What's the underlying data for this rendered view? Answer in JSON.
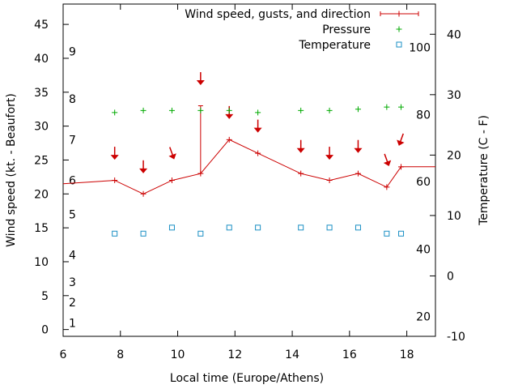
{
  "chart_data": {
    "type": "line",
    "xlabel": "Local time (Europe/Athens)",
    "ylabel_left": "Wind speed (kt. - Beaufort)",
    "ylabel_right": "Temperature (C - F)",
    "xlim": [
      6,
      19
    ],
    "ylim_left": [
      -1,
      48
    ],
    "ylim_right": [
      -10,
      45
    ],
    "x_ticks": [
      6,
      8,
      10,
      12,
      14,
      16,
      18
    ],
    "y_ticks_left": [
      0,
      5,
      10,
      15,
      20,
      25,
      30,
      35,
      40,
      45
    ],
    "y_ticks_right": [
      -10,
      0,
      10,
      20,
      30,
      40
    ],
    "beaufort_labels": [
      {
        "label": "1",
        "y": 1
      },
      {
        "label": "2",
        "y": 4
      },
      {
        "label": "3",
        "y": 7
      },
      {
        "label": "4",
        "y": 11
      },
      {
        "label": "5",
        "y": 17
      },
      {
        "label": "6",
        "y": 22
      },
      {
        "label": "7",
        "y": 28
      },
      {
        "label": "8",
        "y": 34
      },
      {
        "label": "9",
        "y": 41
      }
    ],
    "fahrenheit_labels": [
      {
        "label": "20",
        "t": -6.7
      },
      {
        "label": "40",
        "t": 4.4
      },
      {
        "label": "60",
        "t": 15.6
      },
      {
        "label": "80",
        "t": 26.7
      },
      {
        "label": "100",
        "t": 37.8
      }
    ],
    "legend": {
      "wind": "Wind speed, gusts, and direction",
      "pressure": "Pressure",
      "temperature": "Temperature"
    },
    "legend_position": "top-right",
    "wind_speed": {
      "x": [
        6.0,
        7.8,
        8.8,
        9.8,
        10.8,
        11.8,
        12.8,
        14.3,
        15.3,
        16.3,
        17.3,
        17.8,
        19.0
      ],
      "y": [
        21.5,
        22,
        20,
        22,
        23,
        28,
        26,
        23,
        22,
        23,
        21,
        24,
        24
      ]
    },
    "gusts": [
      {
        "x": 10.8,
        "low": 23,
        "high": 33
      }
    ],
    "wind_direction_arrows": [
      {
        "x": 7.8,
        "y": 26,
        "angle": 0
      },
      {
        "x": 8.8,
        "y": 24,
        "angle": 0
      },
      {
        "x": 9.8,
        "y": 26,
        "angle": -20
      },
      {
        "x": 10.8,
        "y": 37,
        "angle": 0
      },
      {
        "x": 11.8,
        "y": 32,
        "angle": 0
      },
      {
        "x": 12.8,
        "y": 30,
        "angle": 0
      },
      {
        "x": 14.3,
        "y": 27,
        "angle": 0
      },
      {
        "x": 15.3,
        "y": 26,
        "angle": 0
      },
      {
        "x": 16.3,
        "y": 27,
        "angle": 0
      },
      {
        "x": 17.3,
        "y": 25,
        "angle": -20
      },
      {
        "x": 17.8,
        "y": 28,
        "angle": 20
      }
    ],
    "pressure": {
      "x": [
        7.8,
        8.8,
        9.8,
        10.8,
        11.8,
        12.8,
        14.3,
        15.3,
        16.3,
        17.3,
        17.8
      ],
      "y": [
        32,
        32.3,
        32.3,
        32.3,
        32.3,
        32.0,
        32.3,
        32.3,
        32.5,
        32.8,
        32.8
      ]
    },
    "temperature": {
      "x": [
        7.8,
        8.8,
        9.8,
        10.8,
        11.8,
        12.8,
        14.3,
        15.3,
        16.3,
        17.3,
        17.8
      ],
      "y": [
        7,
        7,
        8,
        7,
        8,
        8,
        8,
        8,
        8,
        7,
        7
      ]
    },
    "colors": {
      "wind": "#cc0000",
      "pressure": "#00aa00",
      "temperature": "#1a8fc4",
      "frame": "#000000"
    },
    "grid": false
  }
}
